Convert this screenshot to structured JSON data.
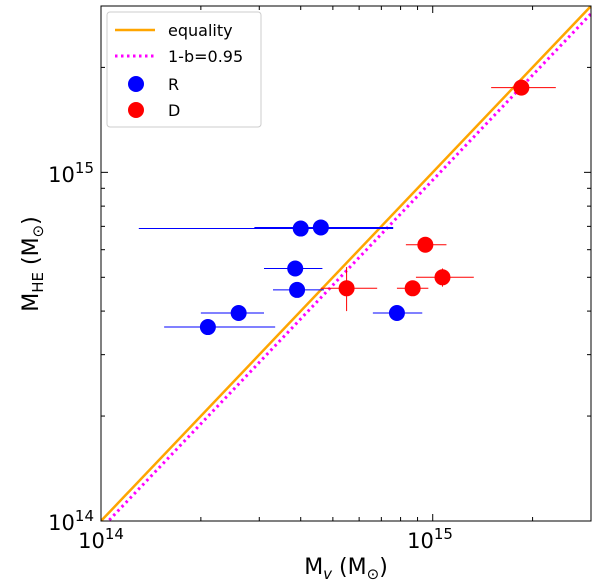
{
  "chart_data": {
    "type": "scatter",
    "xscale": "log",
    "yscale": "log",
    "xlim": [
      100000000000000.0,
      3000000000000000.0
    ],
    "ylim": [
      100000000000000.0,
      3000000000000000.0
    ],
    "xlabel": {
      "main": "M",
      "sub": "v",
      "unit": " (M",
      "unit_sub": "⊙",
      "close": ")"
    },
    "ylabel": {
      "main": "M",
      "sub": "HE",
      "unit": " (M",
      "unit_sub": "⊙",
      "close": ")"
    },
    "xticks": [
      {
        "value": 100000000000000.0,
        "base": "10",
        "exp": "14"
      },
      {
        "value": 1000000000000000.0,
        "base": "10",
        "exp": "15"
      }
    ],
    "yticks": [
      {
        "value": 100000000000000.0,
        "base": "10",
        "exp": "14"
      },
      {
        "value": 1000000000000000.0,
        "base": "10",
        "exp": "15"
      }
    ],
    "legend_position": "top-left",
    "grid": false,
    "lines": [
      {
        "name": "equality",
        "slope": 1.0,
        "color": "#ffa500",
        "style": "solid"
      },
      {
        "name": "1-b=0.95",
        "slope": 0.95,
        "color": "#ff00ff",
        "style": "dotted"
      }
    ],
    "series": [
      {
        "name": "R",
        "color": "#0000ff",
        "points": [
          {
            "x": 400000000000000.0,
            "y": 690000000000000.0,
            "xerr": [
              130000000000000.0,
              760000000000000.0
            ],
            "yerr": null
          },
          {
            "x": 460000000000000.0,
            "y": 695000000000000.0,
            "xerr": [
              290000000000000.0,
              760000000000000.0
            ],
            "yerr": null
          },
          {
            "x": 385000000000000.0,
            "y": 530000000000000.0,
            "xerr": [
              310000000000000.0,
              465000000000000.0
            ],
            "yerr": null
          },
          {
            "x": 390000000000000.0,
            "y": 460000000000000.0,
            "xerr": [
              330000000000000.0,
              470000000000000.0
            ],
            "yerr": null
          },
          {
            "x": 260000000000000.0,
            "y": 395000000000000.0,
            "xerr": [
              200000000000000.0,
              310000000000000.0
            ],
            "yerr": null
          },
          {
            "x": 210000000000000.0,
            "y": 360000000000000.0,
            "xerr": [
              155000000000000.0,
              335000000000000.0
            ],
            "yerr": null
          },
          {
            "x": 780000000000000.0,
            "y": 395000000000000.0,
            "xerr": [
              660000000000000.0,
              930000000000000.0
            ],
            "yerr": null
          }
        ]
      },
      {
        "name": "D",
        "color": "#ff0000",
        "points": [
          {
            "x": 1850000000000000.0,
            "y": 1750000000000000.0,
            "xerr": [
              1500000000000000.0,
              2350000000000000.0
            ],
            "yerr": null
          },
          {
            "x": 950000000000000.0,
            "y": 620000000000000.0,
            "xerr": [
              830000000000000.0,
              1100000000000000.0
            ],
            "yerr": null
          },
          {
            "x": 1070000000000000.0,
            "y": 500000000000000.0,
            "xerr": [
              890000000000000.0,
              1330000000000000.0
            ],
            "yerr": [
              470000000000000.0,
              530000000000000.0
            ]
          },
          {
            "x": 550000000000000.0,
            "y": 465000000000000.0,
            "xerr": [
              460000000000000.0,
              680000000000000.0
            ],
            "yerr": [
              400000000000000.0,
              535000000000000.0
            ]
          },
          {
            "x": 870000000000000.0,
            "y": 465000000000000.0,
            "xerr": [
              780000000000000.0,
              970000000000000.0
            ],
            "yerr": null
          }
        ]
      }
    ]
  }
}
